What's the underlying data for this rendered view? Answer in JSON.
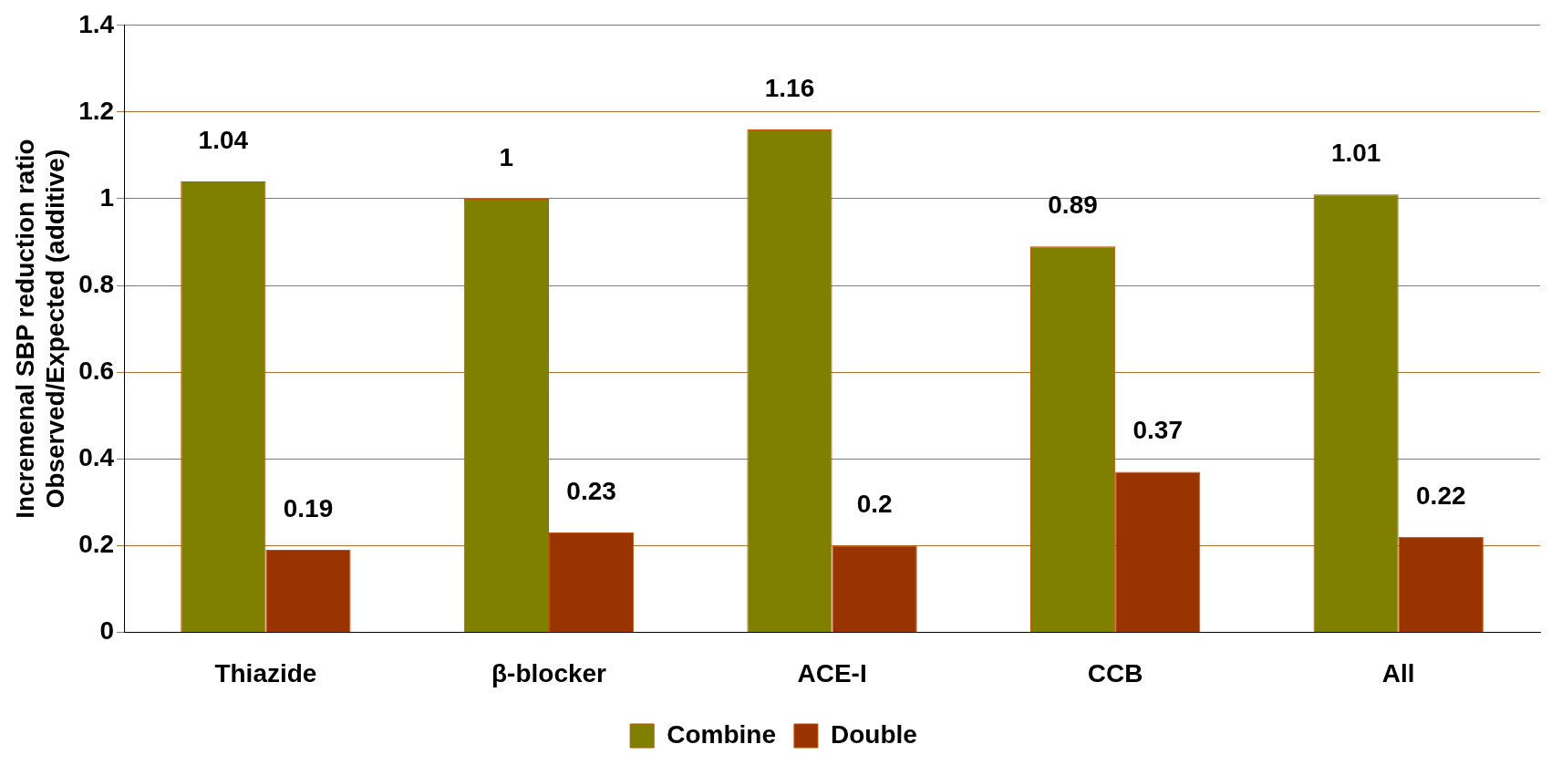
{
  "chart_data": {
    "type": "bar",
    "ylabel": "Incremenal SBP reduction ratio\nObserved/Expected (additive)",
    "categories": [
      "Thiazide",
      "β-blocker",
      "ACE-I",
      "CCB",
      "All"
    ],
    "series": [
      {
        "name": "Combine",
        "color": "#808000",
        "values": [
          1.04,
          1,
          1.16,
          0.89,
          1.01
        ]
      },
      {
        "name": "Double",
        "color": "#993300",
        "values": [
          0.19,
          0.23,
          0.2,
          0.37,
          0.22
        ]
      }
    ],
    "ylim": [
      0,
      1.4
    ],
    "yticks": [
      0,
      0.2,
      0.4,
      0.6,
      0.8,
      1,
      1.2,
      1.4
    ],
    "grid": "y",
    "legend": "bottom",
    "data_labels": true
  }
}
